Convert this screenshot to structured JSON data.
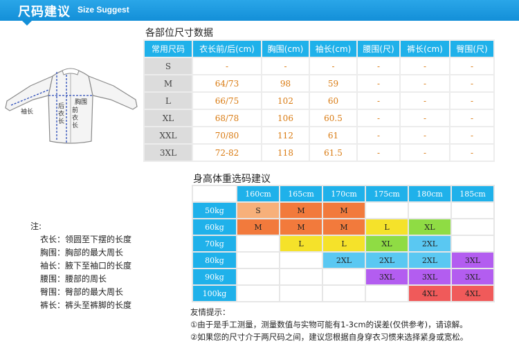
{
  "header": {
    "title_cn": "尺码建议",
    "title_en": "Size Suggest"
  },
  "diagram": {
    "sleeve_label": "袖长",
    "chest_label": "胸围",
    "back_length_label": "后衣长",
    "front_length_label": "前衣长"
  },
  "size_table": {
    "caption": "各部位尺寸数据",
    "headers": [
      "常用尺码",
      "衣长前/后(cm)",
      "胸围(cm)",
      "袖长(cm)",
      "腰围(尺)",
      "裤长(cm)",
      "臀围(尺)"
    ],
    "rows": [
      [
        "S",
        "-",
        "-",
        "-",
        "-",
        "-",
        "-"
      ],
      [
        "M",
        "64/73",
        "98",
        "59",
        "-",
        "-",
        "-"
      ],
      [
        "L",
        "66/75",
        "102",
        "60",
        "-",
        "-",
        "-"
      ],
      [
        "XL",
        "68/78",
        "106",
        "60.5",
        "-",
        "-",
        "-"
      ],
      [
        "XXL",
        "70/80",
        "112",
        "61",
        "-",
        "-",
        "-"
      ],
      [
        "3XL",
        "72-82",
        "118",
        "61.5",
        "-",
        "-",
        "-"
      ]
    ]
  },
  "fit_table": {
    "caption": "身高体重选码建议",
    "heights": [
      "160cm",
      "165cm",
      "170cm",
      "175cm",
      "180cm",
      "185cm"
    ],
    "weights": [
      "50kg",
      "60kg",
      "70kg",
      "80kg",
      "90kg",
      "100kg"
    ],
    "cells": [
      [
        "S",
        "M",
        "M",
        "",
        "",
        ""
      ],
      [
        "M",
        "M",
        "M",
        "L",
        "XL",
        ""
      ],
      [
        "",
        "L",
        "L",
        "XL",
        "2XL",
        ""
      ],
      [
        "",
        "",
        "2XL",
        "2XL",
        "2XL",
        "3XL"
      ],
      [
        "",
        "",
        "",
        "3XL",
        "3XL",
        "3XL"
      ],
      [
        "",
        "",
        "",
        "",
        "4XL",
        "4XL"
      ]
    ],
    "colors": {
      "S": "#f7b07a",
      "M": "#f27a3c",
      "L": "#f5e22a",
      "XL": "#8fdc44",
      "2XL": "#5ac8f2",
      "3XL": "#b35df0",
      "4XL": "#f05a5a"
    }
  },
  "notes": {
    "title": "注:",
    "items": [
      "衣长：领圆至下摆的长度",
      "胸围：胸部的最大周长",
      "袖长：腋下至袖口的长度",
      "腰围：腰部的周长",
      "臀围：臀部的最大周长",
      "裤长：裤头至裤脚的长度"
    ]
  },
  "tips": {
    "title": "友情提示：",
    "lines": [
      "①由于是手工测量，测量数值与实物可能有1-3cm的误差(仅供参考)，请谅解。",
      "②如果您的尺寸介于两尺码之间，建议您根据自身穿衣习惯来选择紧身或宽松。"
    ]
  }
}
